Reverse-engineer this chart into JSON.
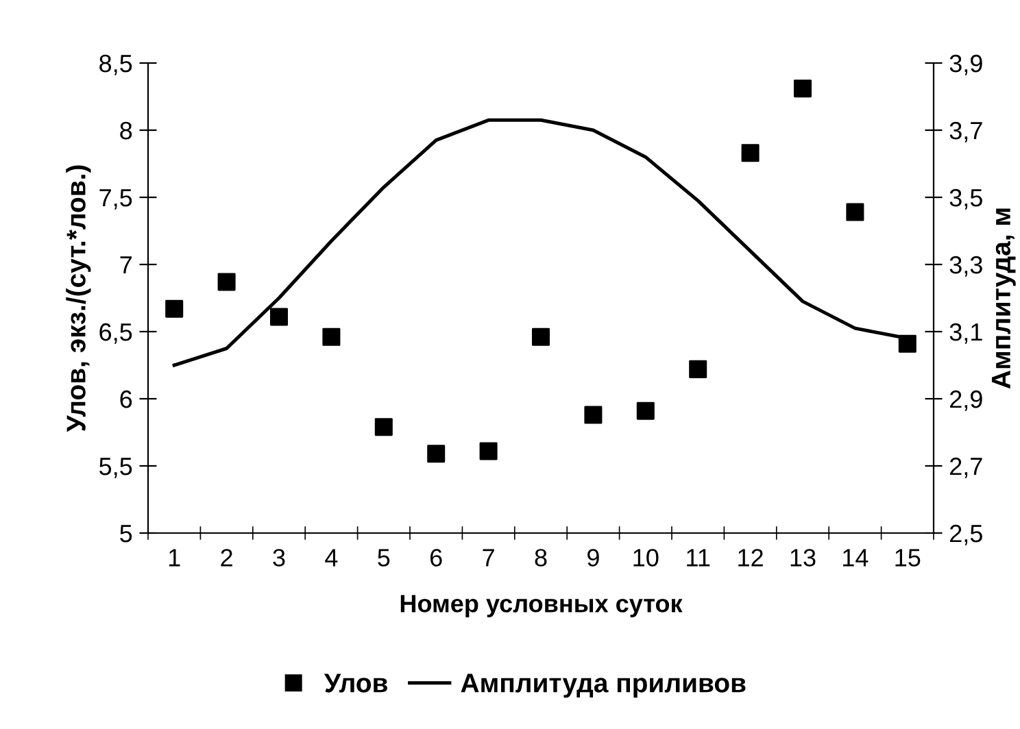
{
  "chart_data": {
    "type": "scatter",
    "categories": [
      "1",
      "2",
      "3",
      "4",
      "5",
      "6",
      "7",
      "8",
      "9",
      "10",
      "11",
      "12",
      "13",
      "14",
      "15"
    ],
    "xlabel": "Номер условных суток",
    "ylabel": "Улов, экз./(сут.*лов.)",
    "y2label": "Амплитуда, м",
    "ylim": [
      5,
      8.5
    ],
    "yticks": [
      5,
      {
        "value": 5.5,
        "label": "5,5"
      },
      6,
      {
        "value": 6.5,
        "label": "6,5"
      },
      7,
      {
        "value": 7.5,
        "label": "7,5"
      },
      8,
      {
        "value": 8.5,
        "label": "8,5"
      }
    ],
    "y2lim": [
      2.5,
      3.9
    ],
    "y2ticks": [
      {
        "value": 2.5,
        "label": "2,5"
      },
      {
        "value": 2.7,
        "label": "2,7"
      },
      {
        "value": 2.9,
        "label": "2,9"
      },
      {
        "value": 3.1,
        "label": "3,1"
      },
      {
        "value": 3.3,
        "label": "3,3"
      },
      {
        "value": 3.5,
        "label": "3,5"
      },
      {
        "value": 3.7,
        "label": "3,7"
      },
      {
        "value": 3.9,
        "label": "3,9"
      }
    ],
    "series": [
      {
        "name": "Улов",
        "marker": "square",
        "color": "#000000",
        "values": [
          6.67,
          6.87,
          6.61,
          6.46,
          5.79,
          5.59,
          5.61,
          6.46,
          5.88,
          5.91,
          6.22,
          7.83,
          8.31,
          7.39,
          6.41
        ]
      },
      {
        "name": "Амплитуда приливов",
        "type": "line",
        "axis": "y2",
        "marker": "none",
        "line_style": "solid",
        "color": "#000000",
        "values": [
          3.0,
          3.05,
          3.2,
          3.37,
          3.53,
          3.67,
          3.73,
          3.73,
          3.7,
          3.62,
          3.49,
          3.34,
          3.19,
          3.11,
          3.08
        ]
      }
    ],
    "grid": false,
    "legend": "bottom"
  }
}
